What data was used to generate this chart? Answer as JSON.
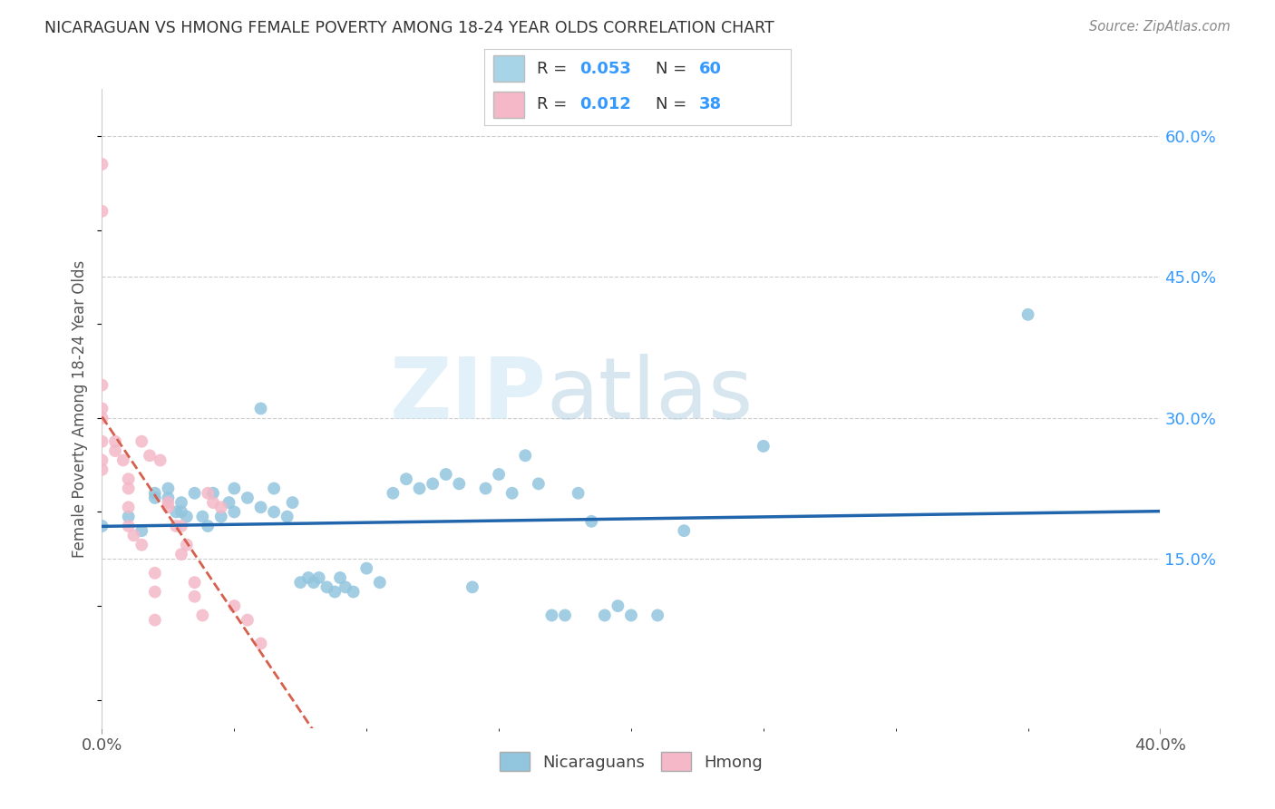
{
  "title": "NICARAGUAN VS HMONG FEMALE POVERTY AMONG 18-24 YEAR OLDS CORRELATION CHART",
  "source": "Source: ZipAtlas.com",
  "ylabel": "Female Poverty Among 18-24 Year Olds",
  "xlim": [
    0.0,
    0.4
  ],
  "ylim": [
    -0.03,
    0.65
  ],
  "ytick_labels_right": [
    "60.0%",
    "45.0%",
    "30.0%",
    "15.0%"
  ],
  "ytick_vals_right": [
    0.6,
    0.45,
    0.3,
    0.15
  ],
  "watermark_zip": "ZIP",
  "watermark_atlas": "atlas",
  "blue_color": "#92c5de",
  "pink_color": "#f4b8c8",
  "blue_line_color": "#2166ac",
  "pink_line_color": "#d6604d",
  "legend_blue_fill": "#a8d4e8",
  "legend_pink_fill": "#f4b8c8",
  "R_blue": "0.053",
  "N_blue": "60",
  "R_pink": "0.012",
  "N_pink": "38",
  "blue_scatter_x": [
    0.0,
    0.01,
    0.015,
    0.02,
    0.02,
    0.025,
    0.025,
    0.028,
    0.03,
    0.03,
    0.032,
    0.035,
    0.038,
    0.04,
    0.042,
    0.045,
    0.048,
    0.05,
    0.05,
    0.055,
    0.06,
    0.06,
    0.065,
    0.065,
    0.07,
    0.072,
    0.075,
    0.078,
    0.08,
    0.082,
    0.085,
    0.088,
    0.09,
    0.092,
    0.095,
    0.1,
    0.105,
    0.11,
    0.115,
    0.12,
    0.125,
    0.13,
    0.135,
    0.14,
    0.145,
    0.15,
    0.155,
    0.16,
    0.165,
    0.17,
    0.175,
    0.18,
    0.185,
    0.19,
    0.195,
    0.2,
    0.21,
    0.22,
    0.25,
    0.35
  ],
  "blue_scatter_y": [
    0.185,
    0.195,
    0.18,
    0.22,
    0.215,
    0.215,
    0.225,
    0.2,
    0.2,
    0.21,
    0.195,
    0.22,
    0.195,
    0.185,
    0.22,
    0.195,
    0.21,
    0.2,
    0.225,
    0.215,
    0.31,
    0.205,
    0.225,
    0.2,
    0.195,
    0.21,
    0.125,
    0.13,
    0.125,
    0.13,
    0.12,
    0.115,
    0.13,
    0.12,
    0.115,
    0.14,
    0.125,
    0.22,
    0.235,
    0.225,
    0.23,
    0.24,
    0.23,
    0.12,
    0.225,
    0.24,
    0.22,
    0.26,
    0.23,
    0.09,
    0.09,
    0.22,
    0.19,
    0.09,
    0.1,
    0.09,
    0.09,
    0.18,
    0.27,
    0.41
  ],
  "pink_scatter_x": [
    0.0,
    0.0,
    0.0,
    0.0,
    0.0,
    0.0,
    0.0,
    0.0,
    0.005,
    0.005,
    0.008,
    0.01,
    0.01,
    0.01,
    0.01,
    0.012,
    0.015,
    0.015,
    0.018,
    0.02,
    0.02,
    0.02,
    0.022,
    0.025,
    0.025,
    0.028,
    0.03,
    0.03,
    0.032,
    0.035,
    0.035,
    0.038,
    0.04,
    0.042,
    0.045,
    0.05,
    0.055,
    0.06
  ],
  "pink_scatter_y": [
    0.57,
    0.52,
    0.335,
    0.31,
    0.3,
    0.275,
    0.255,
    0.245,
    0.275,
    0.265,
    0.255,
    0.235,
    0.225,
    0.205,
    0.185,
    0.175,
    0.165,
    0.275,
    0.26,
    0.135,
    0.115,
    0.085,
    0.255,
    0.21,
    0.205,
    0.185,
    0.155,
    0.185,
    0.165,
    0.125,
    0.11,
    0.09,
    0.22,
    0.21,
    0.205,
    0.1,
    0.085,
    0.06
  ]
}
